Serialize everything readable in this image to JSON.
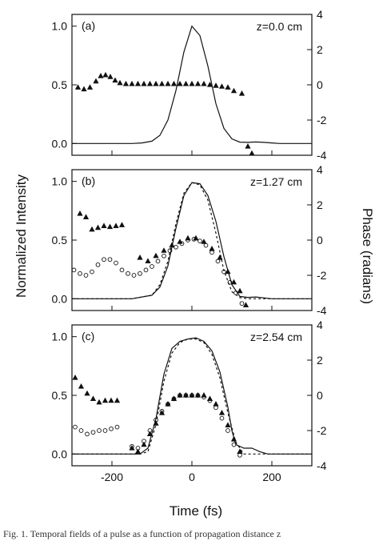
{
  "chart_data": [
    {
      "type": "line",
      "label": "(a)",
      "annotation": "z=0.0 cm",
      "xlim": [
        -300,
        300
      ],
      "ylim_left": [
        -0.1,
        1.1
      ],
      "ylim_right": [
        -4,
        4
      ],
      "yticks_left": [
        "0.0",
        "0.5",
        "1.0"
      ],
      "yticks_right": [
        "-4",
        "-2",
        "0",
        "2",
        "4"
      ],
      "series": [
        {
          "style": "solid",
          "axis": "left",
          "x": [
            -300,
            -250,
            -200,
            -150,
            -125,
            -100,
            -80,
            -60,
            -40,
            -20,
            0,
            20,
            40,
            60,
            80,
            100,
            120,
            140,
            160,
            180,
            200,
            220,
            300
          ],
          "y": [
            0,
            0,
            0,
            0,
            0.005,
            0.02,
            0.07,
            0.2,
            0.45,
            0.78,
            1.0,
            0.92,
            0.66,
            0.34,
            0.13,
            0.04,
            0.012,
            0.01,
            0.013,
            0.01,
            0.005,
            0,
            0
          ]
        },
        {
          "style": "triangle",
          "axis": "right",
          "x": [
            -285,
            -270,
            -255,
            -240,
            -228,
            -216,
            -204,
            -192,
            -180,
            -165,
            -150,
            -135,
            -120,
            -105,
            -90,
            -75,
            -60,
            -45,
            -30,
            -15,
            0,
            15,
            30,
            45,
            60,
            75,
            90,
            105,
            125,
            140,
            150
          ],
          "y": [
            -0.15,
            -0.25,
            -0.15,
            0.2,
            0.5,
            0.55,
            0.45,
            0.25,
            0.1,
            0.05,
            0.05,
            0.05,
            0.05,
            0.05,
            0.05,
            0.05,
            0.05,
            0.05,
            0.05,
            0.05,
            0.05,
            0.05,
            0.05,
            0,
            -0.05,
            -0.1,
            -0.15,
            -0.35,
            -0.5,
            -3.5,
            -3.9
          ]
        }
      ]
    },
    {
      "type": "line",
      "label": "(b)",
      "annotation": "z=1.27 cm",
      "xlim": [
        -300,
        300
      ],
      "ylim_left": [
        -0.1,
        1.1
      ],
      "ylim_right": [
        -4,
        4
      ],
      "yticks_left": [
        "0.0",
        "0.5",
        "1.0"
      ],
      "yticks_right": [
        "-4",
        "-2",
        "0",
        "2",
        "4"
      ],
      "series": [
        {
          "style": "solid",
          "axis": "left",
          "x": [
            -300,
            -150,
            -100,
            -80,
            -60,
            -40,
            -20,
            0,
            20,
            40,
            60,
            80,
            100,
            120,
            140,
            160,
            180,
            200,
            300
          ],
          "y": [
            0,
            0,
            0.03,
            0.1,
            0.28,
            0.6,
            0.88,
            0.99,
            0.98,
            0.88,
            0.66,
            0.36,
            0.12,
            0.02,
            0.012,
            0.015,
            0.008,
            0,
            0
          ]
        },
        {
          "style": "dashed",
          "axis": "left",
          "x": [
            -300,
            -150,
            -100,
            -80,
            -60,
            -40,
            -20,
            0,
            20,
            40,
            60,
            80,
            100,
            120,
            140,
            300
          ],
          "y": [
            0,
            0,
            0.03,
            0.12,
            0.32,
            0.64,
            0.9,
            0.99,
            0.97,
            0.84,
            0.56,
            0.24,
            0.06,
            0.01,
            0,
            0
          ]
        },
        {
          "style": "triangle",
          "axis": "right",
          "x": [
            -280,
            -265,
            -250,
            -235,
            -220,
            -205,
            -190,
            -175,
            -130,
            -110,
            -90,
            -70,
            -50,
            -30,
            -10,
            10,
            30,
            50,
            70,
            90,
            105,
            120,
            135
          ],
          "y": [
            1.5,
            1.3,
            0.6,
            0.7,
            0.8,
            0.75,
            0.8,
            0.85,
            -1.0,
            -1.2,
            -0.9,
            -0.6,
            -0.3,
            -0.1,
            0.1,
            0.1,
            -0.1,
            -0.5,
            -1.0,
            -1.8,
            -2.4,
            -2.9,
            -3.7
          ]
        },
        {
          "style": "circle",
          "axis": "right",
          "x": [
            -295,
            -280,
            -265,
            -250,
            -235,
            -220,
            -205,
            -190,
            -175,
            -160,
            -145,
            -130,
            -115,
            -100,
            -85,
            -70,
            -55,
            -40,
            -25,
            -10,
            5,
            20,
            35,
            50,
            65,
            80,
            95,
            110,
            125
          ],
          "y": [
            -1.7,
            -1.9,
            -2.0,
            -1.8,
            -1.4,
            -1.1,
            -1.1,
            -1.3,
            -1.7,
            -1.9,
            -2.0,
            -1.9,
            -1.7,
            -1.5,
            -1.2,
            -0.9,
            -0.6,
            -0.4,
            -0.2,
            0.0,
            0.05,
            -0.05,
            -0.3,
            -0.7,
            -1.2,
            -1.8,
            -2.4,
            -3.0,
            -3.6
          ]
        }
      ]
    },
    {
      "type": "line",
      "label": "(c)",
      "annotation": "z=2.54 cm",
      "xlim": [
        -300,
        300
      ],
      "ylim_left": [
        -0.1,
        1.1
      ],
      "ylim_right": [
        -4,
        4
      ],
      "yticks_left": [
        "0.0",
        "0.5",
        "1.0"
      ],
      "yticks_right": [
        "-4",
        "-2",
        "0",
        "2",
        "4"
      ],
      "xticks": [
        "-200",
        "0",
        "200"
      ],
      "series": [
        {
          "style": "solid",
          "axis": "left",
          "x": [
            -300,
            -130,
            -110,
            -90,
            -70,
            -50,
            -30,
            -10,
            10,
            30,
            50,
            70,
            90,
            100,
            110,
            130,
            150,
            170,
            190,
            300
          ],
          "y": [
            0,
            0,
            0.05,
            0.3,
            0.68,
            0.9,
            0.96,
            0.98,
            0.99,
            0.96,
            0.88,
            0.7,
            0.4,
            0.2,
            0.08,
            0.05,
            0.05,
            0.02,
            0,
            0
          ]
        },
        {
          "style": "dashed",
          "axis": "left",
          "x": [
            -300,
            -130,
            -110,
            -90,
            -70,
            -50,
            -30,
            -10,
            10,
            30,
            50,
            70,
            90,
            110,
            130,
            300
          ],
          "y": [
            0,
            0,
            0.02,
            0.25,
            0.62,
            0.86,
            0.95,
            0.98,
            0.98,
            0.95,
            0.85,
            0.65,
            0.35,
            0.1,
            0,
            0
          ]
        },
        {
          "style": "triangle",
          "axis": "right",
          "x": [
            -292,
            -277,
            -262,
            -247,
            -232,
            -217,
            -202,
            -187,
            -150,
            -135,
            -120,
            -105,
            -90,
            -75,
            -60,
            -45,
            -30,
            -15,
            0,
            15,
            30,
            45,
            60,
            75,
            90,
            105,
            120
          ],
          "y": [
            1.0,
            0.5,
            0.1,
            -0.2,
            -0.4,
            -0.3,
            -0.3,
            -0.3,
            -3.0,
            -3.2,
            -2.8,
            -2.2,
            -1.6,
            -1.0,
            -0.5,
            -0.2,
            0.0,
            0.0,
            0.0,
            0.0,
            0.0,
            -0.2,
            -0.5,
            -1.0,
            -1.7,
            -2.5,
            -3.2
          ]
        },
        {
          "style": "circle",
          "axis": "right",
          "x": [
            -292,
            -277,
            -262,
            -247,
            -232,
            -217,
            -202,
            -187,
            -150,
            -135,
            -120,
            -105,
            -90,
            -75,
            -60,
            -45,
            -30,
            -15,
            0,
            15,
            30,
            45,
            60,
            75,
            90,
            105,
            120
          ],
          "y": [
            -1.8,
            -2.0,
            -2.2,
            -2.1,
            -2.0,
            -2.0,
            -1.9,
            -1.8,
            -2.9,
            -3.0,
            -2.6,
            -2.0,
            -1.4,
            -0.9,
            -0.5,
            -0.2,
            0.0,
            0.0,
            0.0,
            0.0,
            -0.1,
            -0.3,
            -0.7,
            -1.3,
            -2.0,
            -2.8,
            -3.4
          ]
        }
      ]
    }
  ],
  "axes": {
    "ylabel_left": "Normalized Intensity",
    "ylabel_right": "Phase (radians)",
    "xlabel": "Time (fs)"
  },
  "caption": "Fig. 1. Temporal fields of a pulse as a function of propagation distance z"
}
